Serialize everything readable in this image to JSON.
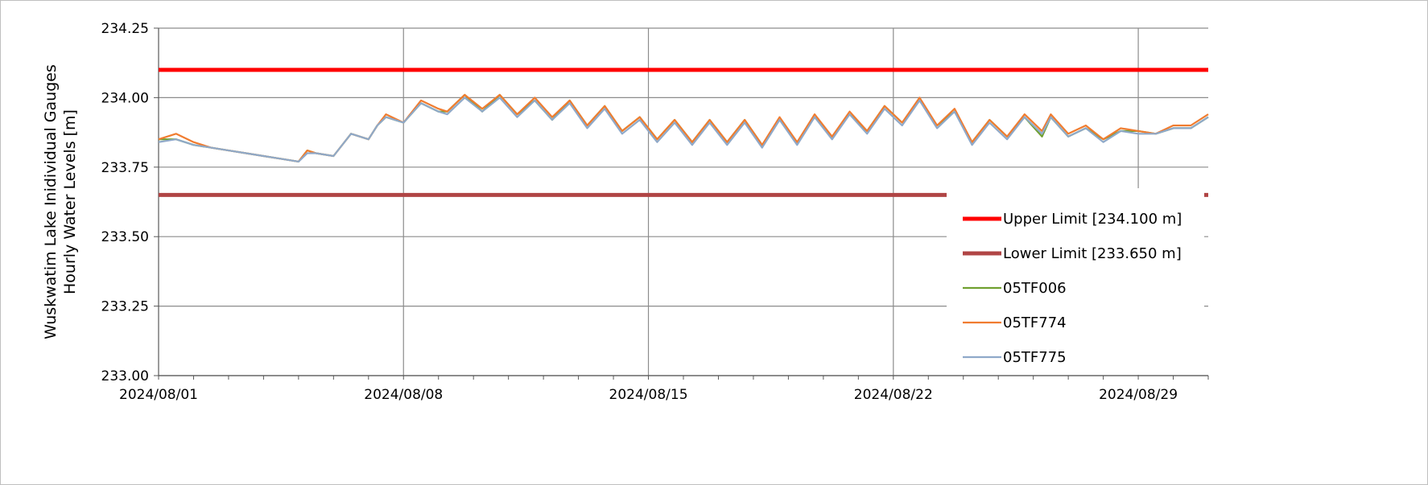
{
  "chart_data": {
    "type": "line",
    "ylabel_lines": [
      "Wuskwatim Lake Inidividual Gauges",
      "Hourly Water Levels [m]"
    ],
    "xlim": [
      "2024/08/01",
      "2024/08/31"
    ],
    "ylim": [
      233.0,
      234.25
    ],
    "x_ticks": [
      "2024/08/01",
      "2024/08/08",
      "2024/08/15",
      "2024/08/22",
      "2024/08/29"
    ],
    "y_ticks": [
      "233.00",
      "233.25",
      "233.50",
      "233.75",
      "234.00",
      "234.25"
    ],
    "grid": true,
    "legend_position": "bottom-right",
    "reference_lines": [
      {
        "name": "Upper Limit [234.100 m]",
        "value": 234.1,
        "color": "#ff0000"
      },
      {
        "name": "Lower Limit [233.650 m]",
        "value": 233.65,
        "color": "#b04545"
      }
    ],
    "series": [
      {
        "name": "05TF006",
        "color": "#70a030",
        "x": [
          "2024/08/01 00:00",
          "2024/08/01 12:00",
          "2024/08/02 00:00",
          "2024/08/02 12:00",
          "2024/08/03 00:00",
          "2024/08/03 12:00",
          "2024/08/04 00:00",
          "2024/08/04 12:00",
          "2024/08/05 00:00",
          "2024/08/05 06:00",
          "2024/08/05 12:00",
          "2024/08/06 00:00",
          "2024/08/06 12:00",
          "2024/08/07 00:00",
          "2024/08/07 06:00",
          "2024/08/07 12:00",
          "2024/08/08 00:00",
          "2024/08/08 12:00",
          "2024/08/09 00:00",
          "2024/08/09 06:00",
          "2024/08/09 18:00",
          "2024/08/10 06:00",
          "2024/08/10 18:00",
          "2024/08/11 06:00",
          "2024/08/11 18:00",
          "2024/08/12 06:00",
          "2024/08/12 18:00",
          "2024/08/13 06:00",
          "2024/08/13 18:00",
          "2024/08/14 06:00",
          "2024/08/14 18:00",
          "2024/08/15 06:00",
          "2024/08/15 18:00",
          "2024/08/16 06:00",
          "2024/08/16 18:00",
          "2024/08/17 06:00",
          "2024/08/17 18:00",
          "2024/08/18 06:00",
          "2024/08/18 18:00",
          "2024/08/19 06:00",
          "2024/08/19 18:00",
          "2024/08/20 06:00",
          "2024/08/20 18:00",
          "2024/08/21 06:00",
          "2024/08/21 18:00",
          "2024/08/22 06:00",
          "2024/08/22 18:00",
          "2024/08/23 06:00",
          "2024/08/23 18:00",
          "2024/08/24 06:00",
          "2024/08/24 18:00",
          "2024/08/25 06:00",
          "2024/08/25 18:00",
          "2024/08/26 06:00",
          "2024/08/26 12:00",
          "2024/08/27 00:00",
          "2024/08/27 12:00",
          "2024/08/28 00:00",
          "2024/08/28 12:00",
          "2024/08/29 00:00",
          "2024/08/29 12:00",
          "2024/08/30 00:00",
          "2024/08/30 12:00",
          "2024/08/31 00:00"
        ],
        "y": [
          233.85,
          233.85,
          233.83,
          233.82,
          233.81,
          233.8,
          233.79,
          233.78,
          233.77,
          233.81,
          233.8,
          233.79,
          233.87,
          233.85,
          233.9,
          233.93,
          233.91,
          233.98,
          233.95,
          233.95,
          234.01,
          233.95,
          234.01,
          233.94,
          233.99,
          233.92,
          233.99,
          233.9,
          233.97,
          233.88,
          233.93,
          233.85,
          233.92,
          233.84,
          233.92,
          233.84,
          233.92,
          233.83,
          233.92,
          233.84,
          233.93,
          233.86,
          233.94,
          233.88,
          233.97,
          233.91,
          233.99,
          233.9,
          233.95,
          233.84,
          233.92,
          233.86,
          233.93,
          233.86,
          233.93,
          233.86,
          233.89,
          233.85,
          233.88,
          233.88,
          233.87,
          233.89,
          233.89,
          233.93
        ]
      },
      {
        "name": "05TF774",
        "color": "#f07c30",
        "x": [
          "2024/08/01 00:00",
          "2024/08/01 12:00",
          "2024/08/02 00:00",
          "2024/08/02 12:00",
          "2024/08/03 00:00",
          "2024/08/03 12:00",
          "2024/08/04 00:00",
          "2024/08/04 12:00",
          "2024/08/05 00:00",
          "2024/08/05 06:00",
          "2024/08/05 12:00",
          "2024/08/06 00:00",
          "2024/08/06 12:00",
          "2024/08/07 00:00",
          "2024/08/07 06:00",
          "2024/08/07 12:00",
          "2024/08/08 00:00",
          "2024/08/08 12:00",
          "2024/08/09 00:00",
          "2024/08/09 06:00",
          "2024/08/09 18:00",
          "2024/08/10 06:00",
          "2024/08/10 18:00",
          "2024/08/11 06:00",
          "2024/08/11 18:00",
          "2024/08/12 06:00",
          "2024/08/12 18:00",
          "2024/08/13 06:00",
          "2024/08/13 18:00",
          "2024/08/14 06:00",
          "2024/08/14 18:00",
          "2024/08/15 06:00",
          "2024/08/15 18:00",
          "2024/08/16 06:00",
          "2024/08/16 18:00",
          "2024/08/17 06:00",
          "2024/08/17 18:00",
          "2024/08/18 06:00",
          "2024/08/18 18:00",
          "2024/08/19 06:00",
          "2024/08/19 18:00",
          "2024/08/20 06:00",
          "2024/08/20 18:00",
          "2024/08/21 06:00",
          "2024/08/21 18:00",
          "2024/08/22 06:00",
          "2024/08/22 18:00",
          "2024/08/23 06:00",
          "2024/08/23 18:00",
          "2024/08/24 06:00",
          "2024/08/24 18:00",
          "2024/08/25 06:00",
          "2024/08/25 18:00",
          "2024/08/26 06:00",
          "2024/08/26 12:00",
          "2024/08/27 00:00",
          "2024/08/27 12:00",
          "2024/08/28 00:00",
          "2024/08/28 12:00",
          "2024/08/29 00:00",
          "2024/08/29 12:00",
          "2024/08/30 00:00",
          "2024/08/30 12:00",
          "2024/08/31 00:00"
        ],
        "y": [
          233.85,
          233.87,
          233.84,
          233.82,
          233.81,
          233.8,
          233.79,
          233.78,
          233.77,
          233.81,
          233.8,
          233.79,
          233.87,
          233.85,
          233.9,
          233.94,
          233.91,
          233.99,
          233.96,
          233.95,
          234.01,
          233.96,
          234.01,
          233.94,
          234.0,
          233.93,
          233.99,
          233.9,
          233.97,
          233.88,
          233.93,
          233.85,
          233.92,
          233.84,
          233.92,
          233.84,
          233.92,
          233.83,
          233.93,
          233.84,
          233.94,
          233.86,
          233.95,
          233.88,
          233.97,
          233.91,
          234.0,
          233.9,
          233.96,
          233.84,
          233.92,
          233.86,
          233.94,
          233.88,
          233.94,
          233.87,
          233.9,
          233.85,
          233.89,
          233.88,
          233.87,
          233.9,
          233.9,
          233.94
        ]
      },
      {
        "name": "05TF775",
        "color": "#8fa9c9",
        "x": [
          "2024/08/01 00:00",
          "2024/08/01 12:00",
          "2024/08/02 00:00",
          "2024/08/02 12:00",
          "2024/08/03 00:00",
          "2024/08/03 12:00",
          "2024/08/04 00:00",
          "2024/08/04 12:00",
          "2024/08/05 00:00",
          "2024/08/05 06:00",
          "2024/08/05 12:00",
          "2024/08/06 00:00",
          "2024/08/06 12:00",
          "2024/08/07 00:00",
          "2024/08/07 06:00",
          "2024/08/07 12:00",
          "2024/08/08 00:00",
          "2024/08/08 12:00",
          "2024/08/09 00:00",
          "2024/08/09 06:00",
          "2024/08/09 18:00",
          "2024/08/10 06:00",
          "2024/08/10 18:00",
          "2024/08/11 06:00",
          "2024/08/11 18:00",
          "2024/08/12 06:00",
          "2024/08/12 18:00",
          "2024/08/13 06:00",
          "2024/08/13 18:00",
          "2024/08/14 06:00",
          "2024/08/14 18:00",
          "2024/08/15 06:00",
          "2024/08/15 18:00",
          "2024/08/16 06:00",
          "2024/08/16 18:00",
          "2024/08/17 06:00",
          "2024/08/17 18:00",
          "2024/08/18 06:00",
          "2024/08/18 18:00",
          "2024/08/19 06:00",
          "2024/08/19 18:00",
          "2024/08/20 06:00",
          "2024/08/20 18:00",
          "2024/08/21 06:00",
          "2024/08/21 18:00",
          "2024/08/22 06:00",
          "2024/08/22 18:00",
          "2024/08/23 06:00",
          "2024/08/23 18:00",
          "2024/08/24 06:00",
          "2024/08/24 18:00",
          "2024/08/25 06:00",
          "2024/08/25 18:00",
          "2024/08/26 06:00",
          "2024/08/26 12:00",
          "2024/08/27 00:00",
          "2024/08/27 12:00",
          "2024/08/28 00:00",
          "2024/08/28 12:00",
          "2024/08/29 00:00",
          "2024/08/29 12:00",
          "2024/08/30 00:00",
          "2024/08/30 12:00",
          "2024/08/31 00:00"
        ],
        "y": [
          233.84,
          233.85,
          233.83,
          233.82,
          233.81,
          233.8,
          233.79,
          233.78,
          233.77,
          233.8,
          233.8,
          233.79,
          233.87,
          233.85,
          233.9,
          233.93,
          233.91,
          233.98,
          233.95,
          233.94,
          234.0,
          233.95,
          234.0,
          233.93,
          233.99,
          233.92,
          233.98,
          233.89,
          233.96,
          233.87,
          233.92,
          233.84,
          233.91,
          233.83,
          233.91,
          233.83,
          233.91,
          233.82,
          233.92,
          233.83,
          233.93,
          233.85,
          233.94,
          233.87,
          233.96,
          233.9,
          233.99,
          233.89,
          233.95,
          233.83,
          233.91,
          233.85,
          233.93,
          233.87,
          233.93,
          233.86,
          233.89,
          233.84,
          233.88,
          233.87,
          233.87,
          233.89,
          233.89,
          233.93
        ]
      }
    ]
  }
}
